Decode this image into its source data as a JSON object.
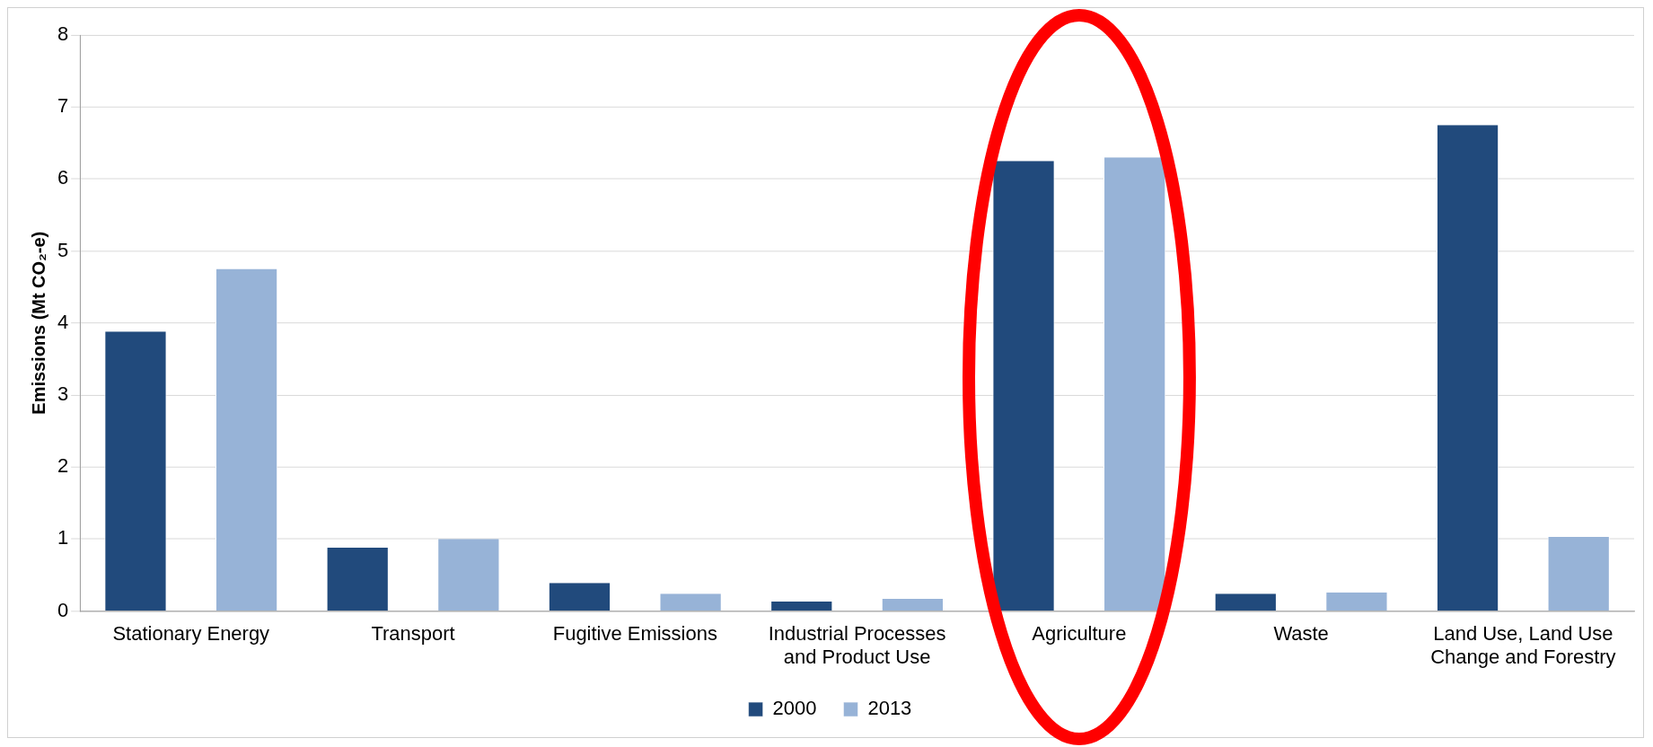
{
  "chart_data": {
    "type": "bar",
    "ylabel": "Emissions (Mt CO₂-e)",
    "categories": [
      "Stationary Energy",
      "Transport",
      "Fugitive Emissions",
      "Industrial Processes and Product Use",
      "Agriculture",
      "Waste",
      "Land Use, Land Use Change and Forestry"
    ],
    "series": [
      {
        "name": "2000",
        "color": "#214a7c",
        "values": [
          3.88,
          0.88,
          0.39,
          0.13,
          6.25,
          0.24,
          6.75
        ]
      },
      {
        "name": "2013",
        "color": "#97b3d7",
        "values": [
          4.75,
          1.0,
          0.24,
          0.17,
          6.3,
          0.26,
          1.03
        ]
      }
    ],
    "ylim": [
      0,
      8
    ],
    "yticks": [
      0,
      1,
      2,
      3,
      4,
      5,
      6,
      7,
      8
    ],
    "grid": "y",
    "legend": "bottom"
  }
}
